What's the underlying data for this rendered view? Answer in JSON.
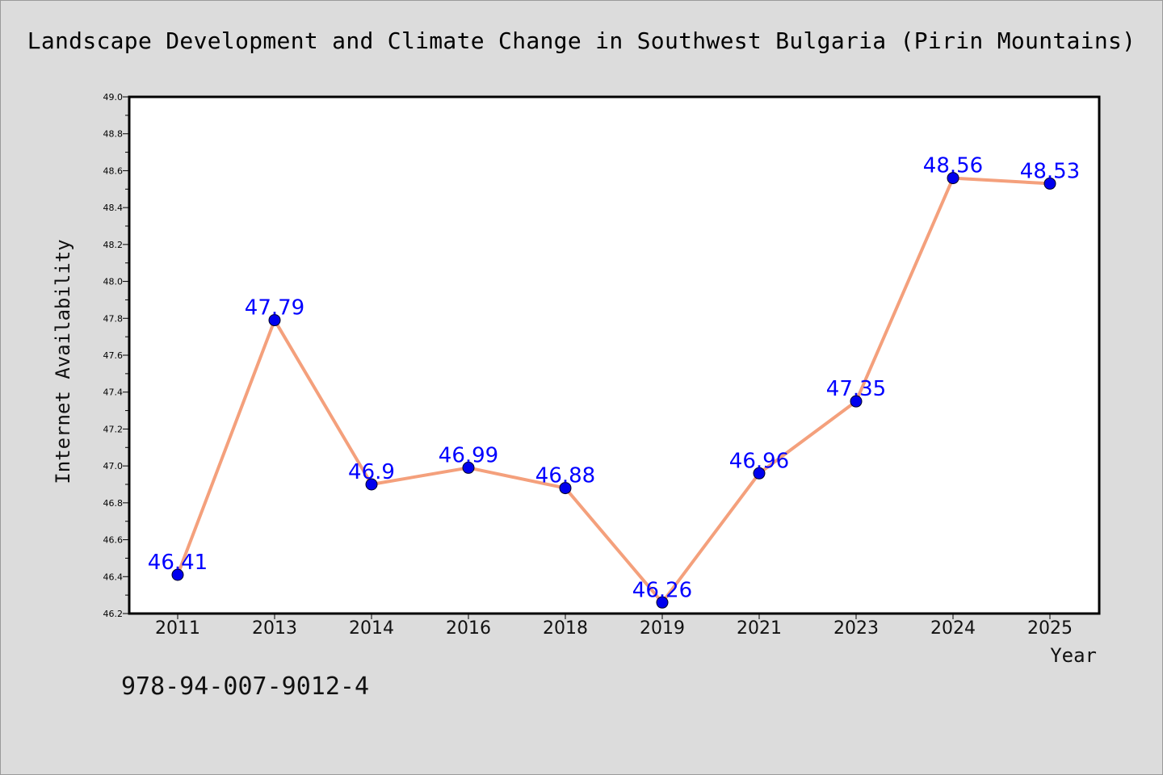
{
  "chart_data": {
    "type": "line",
    "title": "Landscape Development and Climate Change in Southwest Bulgaria (Pirin Mountains)",
    "xlabel": "Year",
    "ylabel": "Internet Availability",
    "categories": [
      "2011",
      "2013",
      "2014",
      "2016",
      "2018",
      "2019",
      "2021",
      "2023",
      "2024",
      "2025"
    ],
    "values": [
      46.41,
      47.79,
      46.9,
      46.99,
      46.88,
      46.26,
      46.96,
      47.35,
      48.56,
      48.53
    ],
    "value_labels": [
      "46.41",
      "47.79",
      "46.9",
      "46.99",
      "46.88",
      "46.26",
      "46.96",
      "47.35",
      "48.56",
      "48.53"
    ],
    "ylim": [
      46.2,
      49.0
    ],
    "yticks": [
      "46.2",
      "46.4",
      "46.6",
      "46.8",
      "47.0",
      "47.2",
      "47.4",
      "47.6",
      "47.8",
      "48.0",
      "48.2",
      "48.4",
      "48.6",
      "48.8",
      "49.0"
    ],
    "grid": false,
    "line_color": "#f4a07c",
    "marker_color": "#0000ee",
    "label_color": "#0000ff"
  },
  "footer": {
    "isbn": "978-94-007-9012-4"
  }
}
